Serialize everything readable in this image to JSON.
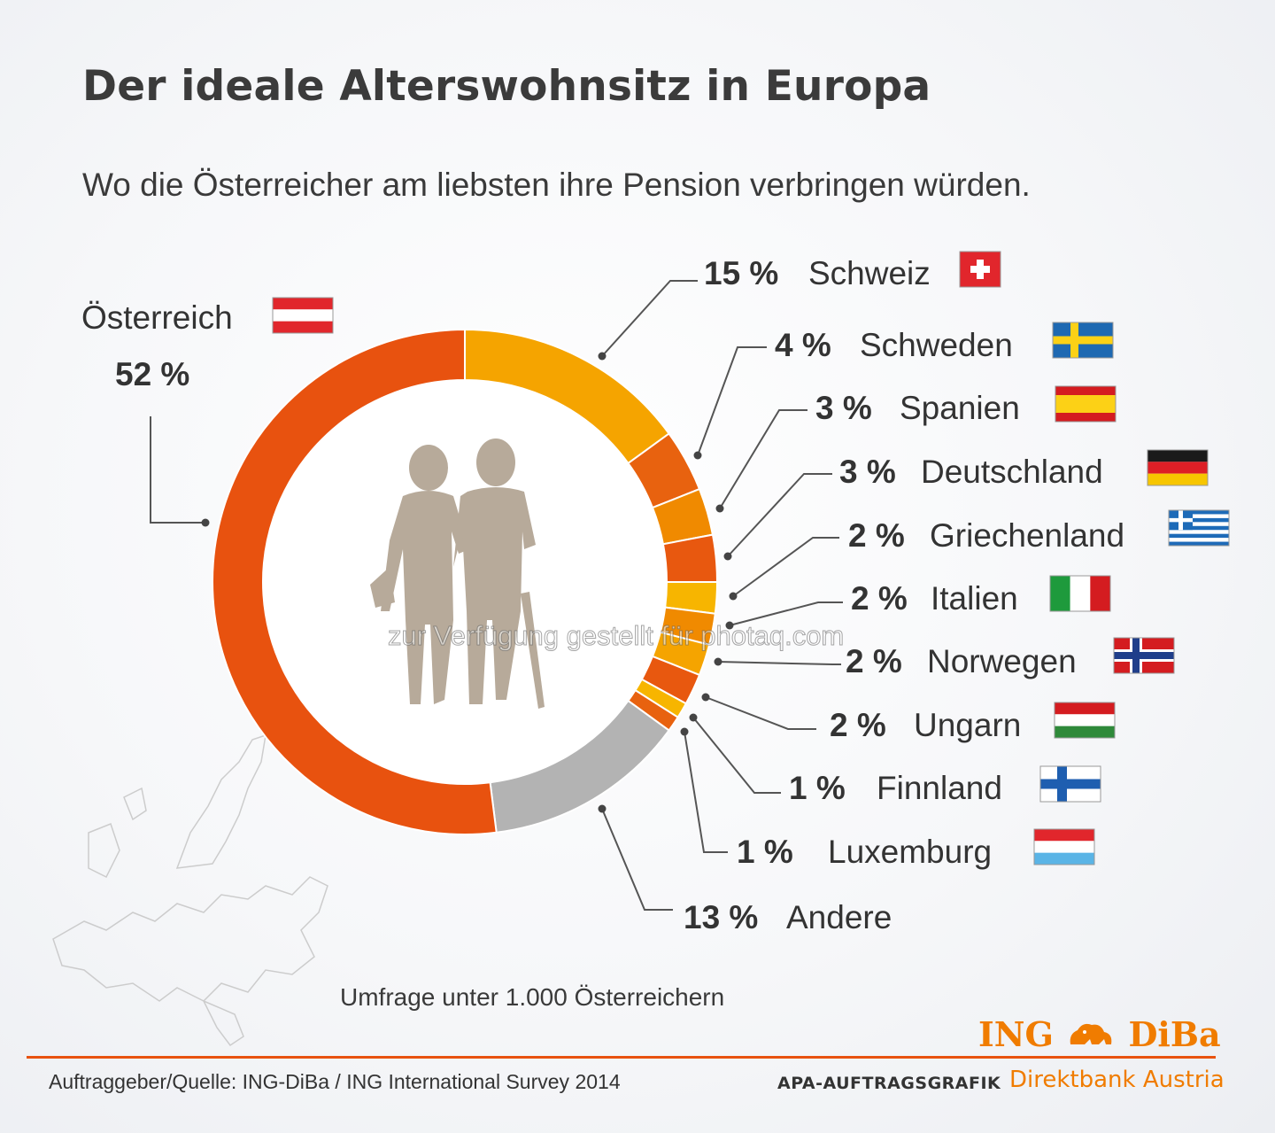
{
  "title": "Der ideale Alterswohnsitz in Europa",
  "subtitle": "Wo die Österreicher am liebsten ihre Pension verbringen würden.",
  "chart_data": {
    "type": "pie",
    "unit": "%",
    "slices": [
      {
        "pct": "52 %",
        "name": "Österreich",
        "value": 52,
        "color": "#e8520f",
        "flag": "austria-flag"
      },
      {
        "pct": "15 %",
        "name": "Schweiz",
        "value": 15,
        "color": "#f5a400",
        "flag": "switzerland-flag"
      },
      {
        "pct": "4 %",
        "name": "Schweden",
        "value": 4,
        "color": "#e8620f",
        "flag": "sweden-flag"
      },
      {
        "pct": "3 %",
        "name": "Spanien",
        "value": 3,
        "color": "#f08a00",
        "flag": "spain-flag"
      },
      {
        "pct": "3 %",
        "name": "Deutschland",
        "value": 3,
        "color": "#e8580f",
        "flag": "germany-flag"
      },
      {
        "pct": "2 %",
        "name": "Griechenland",
        "value": 2,
        "color": "#f7b500",
        "flag": "greece-flag"
      },
      {
        "pct": "2 %",
        "name": "Italien",
        "value": 2,
        "color": "#f08a00",
        "flag": "italy-flag"
      },
      {
        "pct": "2 %",
        "name": "Norwegen",
        "value": 2,
        "color": "#f5a400",
        "flag": "norway-flag"
      },
      {
        "pct": "2 %",
        "name": "Ungarn",
        "value": 2,
        "color": "#e8580f",
        "flag": "hungary-flag"
      },
      {
        "pct": "1 %",
        "name": "Finnland",
        "value": 1,
        "color": "#f7b500",
        "flag": "finland-flag"
      },
      {
        "pct": "1 %",
        "name": "Luxemburg",
        "value": 1,
        "color": "#e8620f",
        "flag": "luxembourg-flag"
      },
      {
        "pct": "13 %",
        "name": "Andere",
        "value": 13,
        "color": "#b3b3b3",
        "flag": ""
      }
    ]
  },
  "footnote": "Umfrage unter 1.000 Österreichern",
  "source": "Auftraggeber/Quelle: ING-DiBa / ING International Survey 2014",
  "apa": "APA-AUFTRAGSGRAFIK",
  "bank": "Direktbank Austria",
  "logo": {
    "left": "ING",
    "right": "DiBa"
  },
  "watermark": "zur Verfügung gestellt für photaq.com"
}
